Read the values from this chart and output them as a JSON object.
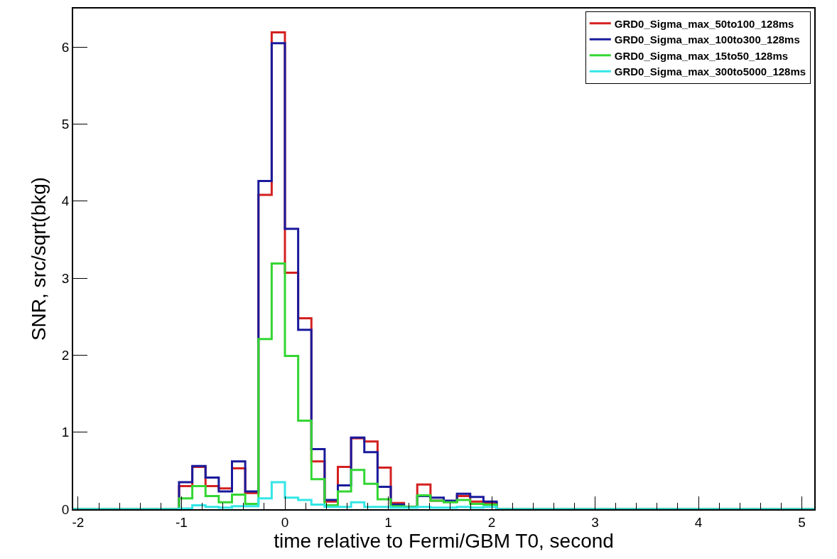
{
  "chart_data": {
    "type": "histogram",
    "xlabel": "time relative to Fermi/GBM T0, second",
    "ylabel": "SNR, src/sqrt(bkg)",
    "bins": [
      -2.048,
      -1.92,
      -1.792,
      -1.664,
      -1.536,
      -1.408,
      -1.28,
      -1.152,
      -1.024,
      -0.896,
      -0.768,
      -0.64,
      -0.512,
      -0.384,
      -0.256,
      -0.128,
      0,
      0.128,
      0.256,
      0.384,
      0.512,
      0.64,
      0.768,
      0.896,
      1.024,
      1.152,
      1.28,
      1.408,
      1.536,
      1.664,
      1.792,
      1.92,
      2.048,
      2.176,
      2.304,
      2.432,
      2.56,
      2.688,
      2.816,
      2.944,
      3.072,
      3.2,
      3.328,
      3.456,
      3.584,
      3.712,
      3.84,
      3.968,
      4.096,
      4.224,
      4.352,
      4.48,
      4.608,
      4.736,
      4.864,
      4.992,
      5.12
    ],
    "series": [
      {
        "name": "GRD0_Sigma_max_50to100_128ms",
        "color": "#d42020",
        "values": [
          0,
          0,
          0,
          0,
          0,
          0,
          0,
          0,
          0.3,
          0.55,
          0.3,
          0.27,
          0.53,
          0.21,
          4.08,
          6.19,
          3.07,
          2.48,
          0.62,
          0.1,
          0.55,
          0.92,
          0.88,
          0.54,
          0.08,
          0.03,
          0.32,
          0.11,
          0.1,
          0.17,
          0.1,
          0.08,
          0,
          0,
          0,
          0,
          0,
          0,
          0,
          0,
          0,
          0,
          0,
          0,
          0,
          0,
          0,
          0,
          0,
          0,
          0,
          0,
          0,
          0,
          0,
          0
        ]
      },
      {
        "name": "GRD0_Sigma_max_100to300_128ms",
        "color": "#1a1a9c",
        "values": [
          0,
          0,
          0,
          0,
          0,
          0,
          0,
          0,
          0.35,
          0.56,
          0.41,
          0.23,
          0.62,
          0.23,
          4.26,
          6.05,
          3.64,
          2.33,
          0.78,
          0.12,
          0.31,
          0.93,
          0.74,
          0.29,
          0.06,
          0.03,
          0.17,
          0.15,
          0.11,
          0.2,
          0.16,
          0.1,
          0,
          0,
          0,
          0,
          0,
          0,
          0,
          0,
          0,
          0,
          0,
          0,
          0,
          0,
          0,
          0,
          0,
          0,
          0,
          0,
          0,
          0,
          0,
          0
        ]
      },
      {
        "name": "GRD0_Sigma_max_15to50_128ms",
        "color": "#33d633",
        "values": [
          0,
          0,
          0,
          0,
          0,
          0,
          0,
          0,
          0.14,
          0.3,
          0.17,
          0.09,
          0.19,
          0.07,
          2.21,
          3.19,
          1.99,
          1.15,
          0.39,
          0.05,
          0.23,
          0.51,
          0.33,
          0.13,
          0.04,
          0.03,
          0.18,
          0.11,
          0.09,
          0.12,
          0.07,
          0.06,
          0,
          0,
          0,
          0,
          0,
          0,
          0,
          0,
          0,
          0,
          0,
          0,
          0,
          0,
          0,
          0,
          0,
          0,
          0,
          0,
          0,
          0,
          0,
          0
        ]
      },
      {
        "name": "GRD0_Sigma_max_300to5000_128ms",
        "color": "#33e6e6",
        "values": [
          0,
          0,
          0,
          0,
          0,
          0,
          0,
          0,
          0.01,
          0.05,
          0.03,
          0.02,
          0.04,
          0.04,
          0.14,
          0.35,
          0.15,
          0.12,
          0.06,
          0.03,
          0.03,
          0.09,
          0.03,
          0.03,
          0.02,
          0.02,
          0.03,
          0.02,
          0.02,
          0.03,
          0.02,
          0.03,
          0,
          0,
          0,
          0,
          0,
          0,
          0,
          0,
          0,
          0,
          0,
          0,
          0,
          0,
          0,
          0,
          0,
          0,
          0,
          0,
          0,
          0,
          0,
          0
        ]
      }
    ],
    "xlim": [
      -2.048,
      5.12
    ],
    "xticks": [
      -2,
      -1,
      0,
      1,
      2,
      3,
      4,
      5
    ],
    "ylim": [
      0,
      6.5
    ],
    "yticks": [
      0,
      1,
      2,
      3,
      4,
      5,
      6
    ],
    "grid": false,
    "legend": "top right"
  }
}
